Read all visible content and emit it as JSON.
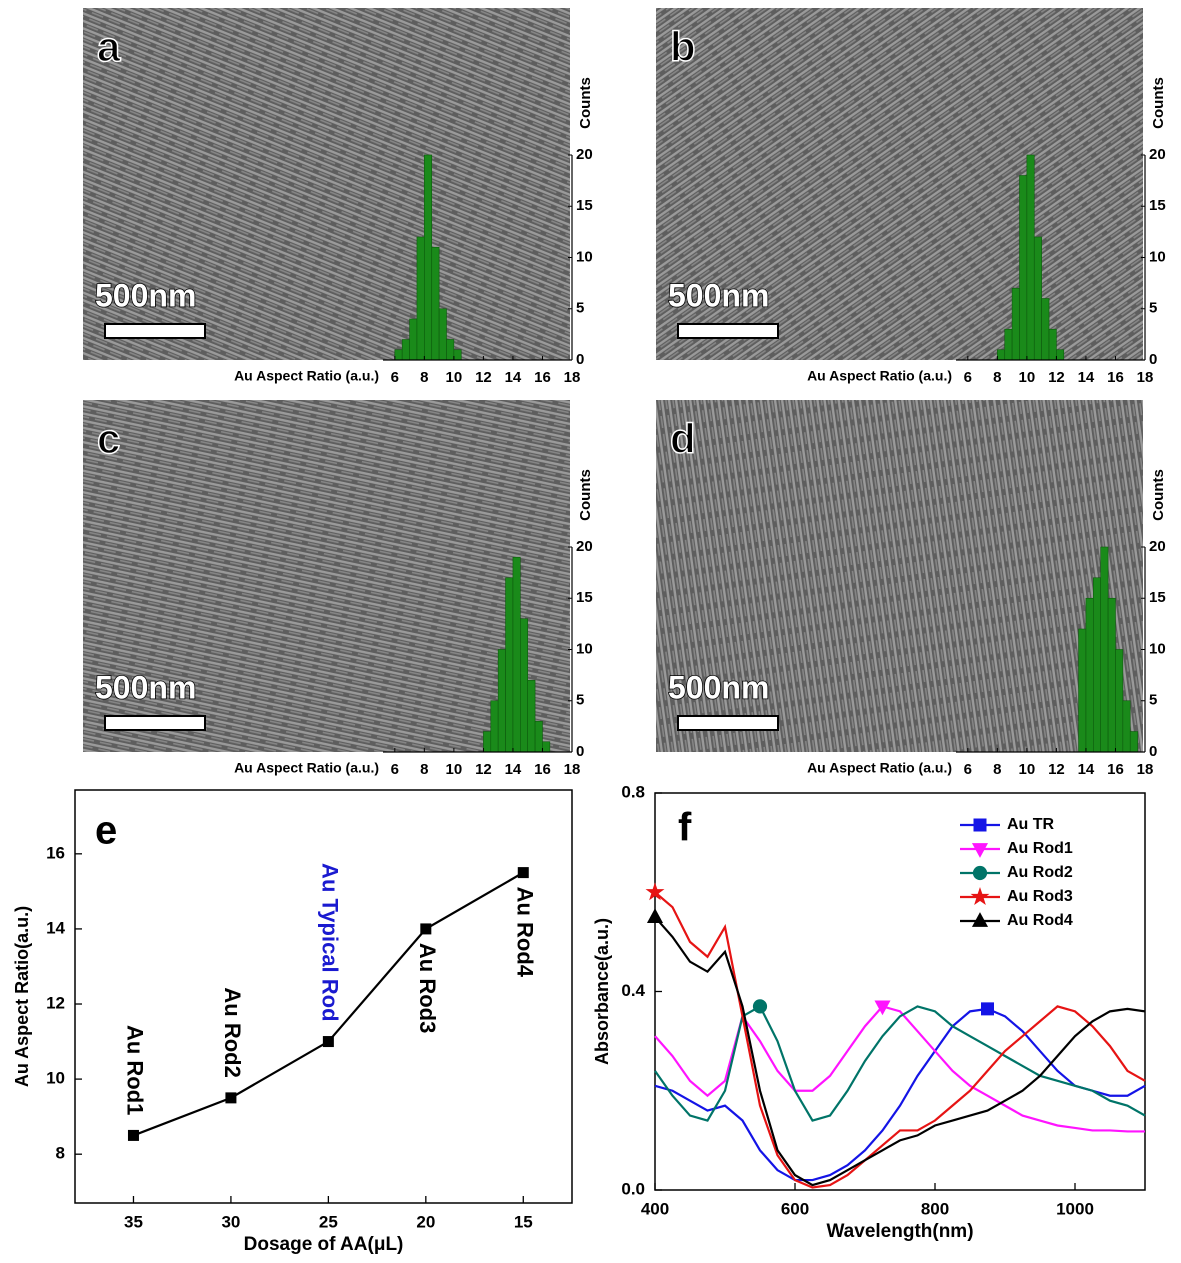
{
  "chart_data": [
    {
      "type": "histogram",
      "panel": "a",
      "scale_bar": "500nm",
      "xlabel": "Au Aspect Ratio (a.u.)",
      "ylabel": "Counts",
      "color": "#1a8a1a",
      "bins": [
        6,
        6.5,
        7,
        7.5,
        8,
        8.5,
        9,
        9.5,
        10,
        10.5
      ],
      "counts": [
        1,
        2,
        4,
        12,
        20,
        11,
        5,
        2,
        1
      ],
      "xlim": [
        5.2,
        18
      ],
      "xticks": [
        6,
        8,
        10,
        12,
        14,
        16,
        18
      ],
      "ylim": [
        0,
        20
      ],
      "yticks": [
        0,
        5,
        10,
        15,
        20
      ]
    },
    {
      "type": "histogram",
      "panel": "b",
      "scale_bar": "500nm",
      "xlabel": "Au Aspect Ratio (a.u.)",
      "ylabel": "Counts",
      "color": "#1a8a1a",
      "bins": [
        8,
        8.5,
        9,
        9.5,
        10,
        10.5,
        11,
        11.5,
        12,
        12.5
      ],
      "counts": [
        1,
        3,
        7,
        18,
        20,
        12,
        6,
        3,
        1
      ],
      "xlim": [
        5.2,
        18
      ],
      "xticks": [
        6,
        8,
        10,
        12,
        14,
        16,
        18
      ],
      "ylim": [
        0,
        20
      ],
      "yticks": [
        0,
        5,
        10,
        15,
        20
      ]
    },
    {
      "type": "histogram",
      "panel": "c",
      "scale_bar": "500nm",
      "xlabel": "Au Aspect Ratio (a.u.)",
      "ylabel": "Counts",
      "color": "#1a8a1a",
      "bins": [
        12,
        12.5,
        13,
        13.5,
        14,
        14.5,
        15,
        15.5,
        16,
        16.5
      ],
      "counts": [
        2,
        5,
        10,
        17,
        19,
        13,
        7,
        3,
        1
      ],
      "xlim": [
        5.2,
        18
      ],
      "xticks": [
        6,
        8,
        10,
        12,
        14,
        16,
        18
      ],
      "ylim": [
        0,
        20
      ],
      "yticks": [
        0,
        5,
        10,
        15,
        20
      ]
    },
    {
      "type": "histogram",
      "panel": "d",
      "scale_bar": "500nm",
      "xlabel": "Au Aspect Ratio (a.u.)",
      "ylabel": "Counts",
      "color": "#1a8a1a",
      "bins": [
        13.5,
        14,
        14.5,
        15,
        15.5,
        16,
        16.5,
        17,
        17.5
      ],
      "counts": [
        12,
        15,
        17,
        20,
        15,
        10,
        5,
        2
      ],
      "xlim": [
        5.2,
        18
      ],
      "xticks": [
        6,
        8,
        10,
        12,
        14,
        16,
        18
      ],
      "ylim": [
        0,
        20
      ],
      "yticks": [
        0,
        5,
        10,
        15,
        20
      ]
    },
    {
      "type": "line",
      "panel": "e",
      "xlabel": "Dosage of AA(μL)",
      "ylabel": "Au Aspect Ratio(a.u.)",
      "color": "#000000",
      "marker": "square",
      "x": [
        35,
        30,
        25,
        20,
        15
      ],
      "values": [
        8.5,
        9.5,
        11,
        14,
        15.5
      ],
      "annotations": [
        {
          "text": "Au Rod1",
          "color": "#000000"
        },
        {
          "text": "Au Rod2",
          "color": "#000000"
        },
        {
          "text": "Au Typical Rod",
          "color": "#1a1ad0"
        },
        {
          "text": "Au Rod3",
          "color": "#000000"
        },
        {
          "text": "Au Rod4",
          "color": "#000000"
        }
      ],
      "xlim": [
        38,
        12.5
      ],
      "xticks": [
        35,
        30,
        25,
        20,
        15
      ],
      "ylim": [
        6.7,
        17.7
      ],
      "yticks": [
        8,
        10,
        12,
        14,
        16
      ]
    },
    {
      "type": "line",
      "panel": "f",
      "xlabel": "Wavelength(nm)",
      "ylabel": "Absorbance(a.u.)",
      "x": [
        400,
        425,
        450,
        475,
        500,
        525,
        550,
        575,
        600,
        625,
        650,
        675,
        700,
        725,
        750,
        775,
        800,
        825,
        850,
        875,
        900,
        925,
        950,
        975,
        1000,
        1025,
        1050,
        1075,
        1100
      ],
      "series": [
        {
          "name": "Au TR",
          "color": "#1414e6",
          "marker": "square",
          "values": [
            0.21,
            0.2,
            0.18,
            0.16,
            0.17,
            0.14,
            0.08,
            0.04,
            0.02,
            0.02,
            0.03,
            0.05,
            0.08,
            0.12,
            0.17,
            0.23,
            0.28,
            0.33,
            0.36,
            0.365,
            0.35,
            0.32,
            0.28,
            0.24,
            0.21,
            0.2,
            0.19,
            0.19,
            0.21
          ]
        },
        {
          "name": "Au Rod1",
          "color": "#ff14ff",
          "marker": "triangle-down",
          "values": [
            0.31,
            0.27,
            0.22,
            0.19,
            0.22,
            0.35,
            0.3,
            0.24,
            0.2,
            0.2,
            0.23,
            0.28,
            0.33,
            0.37,
            0.36,
            0.32,
            0.28,
            0.24,
            0.21,
            0.19,
            0.17,
            0.15,
            0.14,
            0.13,
            0.125,
            0.12,
            0.12,
            0.118,
            0.118
          ]
        },
        {
          "name": "Au Rod2",
          "color": "#007468",
          "marker": "circle",
          "values": [
            0.24,
            0.19,
            0.15,
            0.14,
            0.2,
            0.35,
            0.37,
            0.3,
            0.2,
            0.14,
            0.15,
            0.2,
            0.26,
            0.31,
            0.35,
            0.37,
            0.36,
            0.33,
            0.31,
            0.29,
            0.27,
            0.25,
            0.23,
            0.22,
            0.21,
            0.2,
            0.18,
            0.17,
            0.15
          ]
        },
        {
          "name": "Au Rod3",
          "color": "#e61414",
          "marker": "star",
          "values": [
            0.6,
            0.57,
            0.5,
            0.47,
            0.53,
            0.35,
            0.17,
            0.07,
            0.02,
            0.005,
            0.01,
            0.03,
            0.06,
            0.09,
            0.12,
            0.12,
            0.14,
            0.17,
            0.2,
            0.24,
            0.28,
            0.31,
            0.34,
            0.37,
            0.36,
            0.33,
            0.29,
            0.24,
            0.22
          ]
        },
        {
          "name": "Au Rod4",
          "color": "#000000",
          "marker": "triangle-up",
          "values": [
            0.55,
            0.51,
            0.46,
            0.44,
            0.48,
            0.37,
            0.2,
            0.08,
            0.03,
            0.01,
            0.02,
            0.04,
            0.06,
            0.08,
            0.1,
            0.11,
            0.13,
            0.14,
            0.15,
            0.16,
            0.18,
            0.2,
            0.23,
            0.27,
            0.31,
            0.34,
            0.36,
            0.365,
            0.36
          ]
        }
      ],
      "legend": "upper right",
      "xlim": [
        400,
        1100
      ],
      "xticks": [
        400,
        600,
        800,
        1000
      ],
      "ylim": [
        0,
        0.8
      ],
      "yticks": [
        {
          "value": 0,
          "label": "0.0"
        },
        0.4,
        0.8
      ]
    }
  ]
}
